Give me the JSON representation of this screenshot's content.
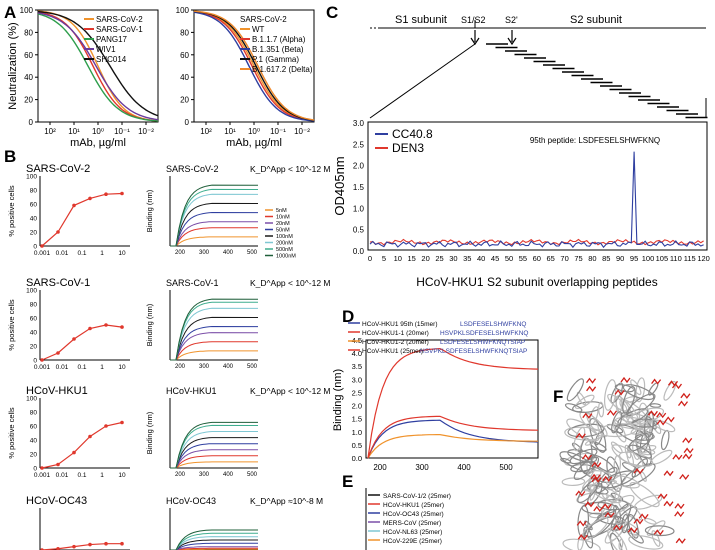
{
  "panels": {
    "A": "A",
    "B": "B",
    "C": "C",
    "D": "D",
    "E": "E",
    "F": "F"
  },
  "panelA": {
    "ylabel": "Neutralization (%)",
    "xlabel": "mAb, µg/ml",
    "yticks": [
      "100",
      "80",
      "60",
      "40",
      "20",
      "0"
    ],
    "xticks": [
      "10²",
      "10¹",
      "10⁰",
      "10⁻¹",
      "10⁻²"
    ],
    "left_legend": [
      {
        "name": "SARS-CoV-2",
        "color": "#f0932c"
      },
      {
        "name": "SARS-CoV-1",
        "color": "#e0382d"
      },
      {
        "name": "PANG17",
        "color": "#2e9e4c"
      },
      {
        "name": "WIV1",
        "color": "#6a3b9c"
      },
      {
        "name": "SHC014",
        "color": "#111111"
      }
    ],
    "right_legend_title": "SARS-CoV-2",
    "right_legend": [
      {
        "name": "WT",
        "color": "#f0932c"
      },
      {
        "name": "B.1.1.7 (Alpha)",
        "color": "#e0382d"
      },
      {
        "name": "B.1.351 (Beta)",
        "color": "#2f3fa0"
      },
      {
        "name": "P.1 (Gamma)",
        "color": "#111111"
      },
      {
        "name": "B.1.617.2 (Delta)",
        "color": "#f08a2c"
      }
    ]
  },
  "panelB": {
    "rows": [
      {
        "name": "SARS-CoV-2",
        "kd": "K_D^App < 10^-12 M",
        "values": [
          0,
          20,
          58,
          68,
          74,
          75
        ]
      },
      {
        "name": "SARS-CoV-1",
        "kd": "K_D^App < 10^-12 M",
        "values": [
          0,
          10,
          30,
          45,
          50,
          47
        ]
      },
      {
        "name": "HCoV-HKU1",
        "kd": "K_D^App < 10^-12 M",
        "values": [
          0,
          5,
          22,
          45,
          60,
          65
        ]
      },
      {
        "name": "HCoV-OC43",
        "kd": "K_D^App ≈10^-8 M",
        "values": [
          0,
          3,
          8,
          13,
          15,
          15
        ]
      }
    ],
    "pos_ylabel": "% positive cells",
    "bind_ylabel": "Binding (nm)",
    "x_ticks": [
      "0.001",
      "0.01",
      "0.1",
      "1",
      "10"
    ],
    "pos_yticks": [
      "100",
      "80",
      "60",
      "40",
      "20",
      "0"
    ],
    "bind_xticks": [
      "200",
      "300",
      "400",
      "500"
    ],
    "bli_legend": [
      "5nM",
      "10nM",
      "20nM",
      "50nM",
      "100nM",
      "200nM",
      "500nM",
      "1000nM"
    ],
    "bli_colors": [
      "#f0932c",
      "#e0382d",
      "#7b4fa8",
      "#2f3fa0",
      "#1a1a1a",
      "#7fc7d3",
      "#3fae8f",
      "#1f5f3a"
    ]
  },
  "panelC": {
    "s1": "S1 subunit",
    "s1s2": "S1/S2",
    "s2prime": "S2'",
    "s2": "S2 subunit",
    "ylabel": "OD405nm",
    "xlabel": "HCoV-HKU1 S2 subunit overlapping peptides",
    "peptide_label": "95th peptide: LSDFESELSHWFKNQ",
    "legend": [
      {
        "name": "CC40.8",
        "color": "#2f3fa0"
      },
      {
        "name": "DEN3",
        "color": "#e0382d"
      }
    ],
    "yticks": [
      "3.0",
      "2.5",
      "2.0",
      "1.5",
      "1.0",
      "0.5",
      "0.0"
    ],
    "xticks": [
      "0",
      "5",
      "10",
      "15",
      "20",
      "25",
      "30",
      "35",
      "40",
      "45",
      "50",
      "55",
      "60",
      "65",
      "70",
      "75",
      "80",
      "85",
      "90",
      "95",
      "100",
      "105",
      "110",
      "115",
      "120"
    ]
  },
  "panelD": {
    "ylabel": "Binding (nm)",
    "yticks": [
      "4.5",
      "4.0",
      "3.5",
      "3.0",
      "2.5",
      "2.0",
      "1.5",
      "1.0",
      "0.5",
      "0.0"
    ],
    "xticks": [
      "200",
      "300",
      "400",
      "500"
    ],
    "legend": [
      {
        "label": "HCoV-HKU1 95th (15mer)",
        "seq": "LSDFESELSHWFKNQ",
        "color": "#2f3fa0"
      },
      {
        "label": "HCoV-HKU1-1 (20mer)",
        "seq": "HSVPKLSDFESELSHWFKNQ",
        "color": "#e0382d"
      },
      {
        "label": "HCoV-HKU1-2 (20mer)",
        "seq": "LSDFESELSHWFKNQTSIAP",
        "color": "#f0932c"
      },
      {
        "label": "HCoV-HKU1 (25mer)",
        "seq": "HSVPKLSDFESELSHWFKNQTSIAP",
        "color": "#e0382d"
      }
    ]
  },
  "panelE": {
    "legend": [
      {
        "label": "SARS-CoV-1/2 (25mer)",
        "color": "#111111"
      },
      {
        "label": "HCoV-HKU1 (25mer)",
        "color": "#e0382d"
      },
      {
        "label": "HCoV-OC43 (25mer)",
        "color": "#2f3fa0"
      },
      {
        "label": "MERS-CoV (25mer)",
        "color": "#7b4fa8"
      },
      {
        "label": "HCoV-NL63 (25mer)",
        "color": "#7fc7d3"
      },
      {
        "label": "HCoV-229E (25mer)",
        "color": "#f0932c"
      }
    ]
  },
  "chart_data": [
    {
      "type": "line",
      "title": "",
      "xlabel": "mAb, µg/ml",
      "ylabel": "Neutralization (%)",
      "ylim": [
        0,
        100
      ],
      "series": [
        {
          "name": "SARS-CoV-2"
        },
        {
          "name": "SARS-CoV-1"
        },
        {
          "name": "PANG17"
        },
        {
          "name": "WIV1"
        },
        {
          "name": "SHC014"
        }
      ]
    },
    {
      "type": "line",
      "xlabel": "mAb, µg/ml",
      "ylim": [
        0,
        100
      ],
      "series": [
        {
          "name": "WT"
        },
        {
          "name": "B.1.1.7 (Alpha)"
        },
        {
          "name": "B.1.351 (Beta)"
        },
        {
          "name": "P.1 (Gamma)"
        },
        {
          "name": "B.1.617.2 (Delta)"
        }
      ]
    },
    {
      "type": "line",
      "xlabel": "HCoV-HKU1 S2 subunit overlapping peptides",
      "ylabel": "OD405nm",
      "ylim": [
        0,
        3.0
      ],
      "series": [
        {
          "name": "CC40.8",
          "peak_x": 95,
          "peak_y": 2.5
        },
        {
          "name": "DEN3"
        }
      ]
    }
  ]
}
